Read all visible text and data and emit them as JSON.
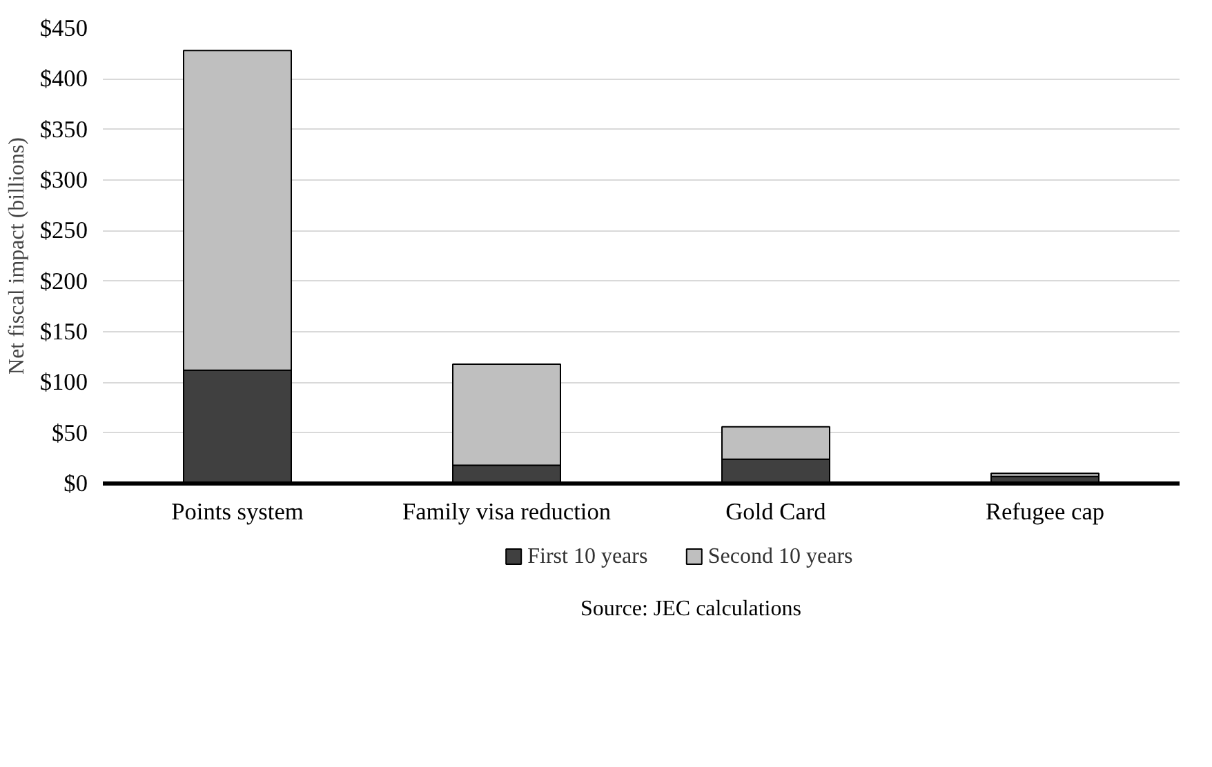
{
  "chart_data": {
    "type": "bar",
    "stacked": true,
    "ylabel": "Net fiscal impact (billions)",
    "categories": [
      "Points system",
      "Family visa reduction",
      "Gold Card",
      "Refugee cap"
    ],
    "series": [
      {
        "name": "First 10 years",
        "color": "#404040",
        "values": [
          112,
          18,
          24,
          7
        ]
      },
      {
        "name": "Second 10 years",
        "color": "#bfbfbf",
        "values": [
          316,
          100,
          32,
          3
        ]
      }
    ],
    "ylim": [
      0,
      450
    ],
    "yticks": [
      {
        "value": 0,
        "label": "$0"
      },
      {
        "value": 50,
        "label": "$50"
      },
      {
        "value": 100,
        "label": "$100"
      },
      {
        "value": 150,
        "label": "$150"
      },
      {
        "value": 200,
        "label": "$200"
      },
      {
        "value": 250,
        "label": "$250"
      },
      {
        "value": 300,
        "label": "$300"
      },
      {
        "value": 350,
        "label": "$350"
      },
      {
        "value": 400,
        "label": "$400"
      },
      {
        "value": 450,
        "label": "$450"
      }
    ],
    "grid": "y",
    "legend": "bottom",
    "annotations": [
      "Source: JEC calculations"
    ]
  }
}
